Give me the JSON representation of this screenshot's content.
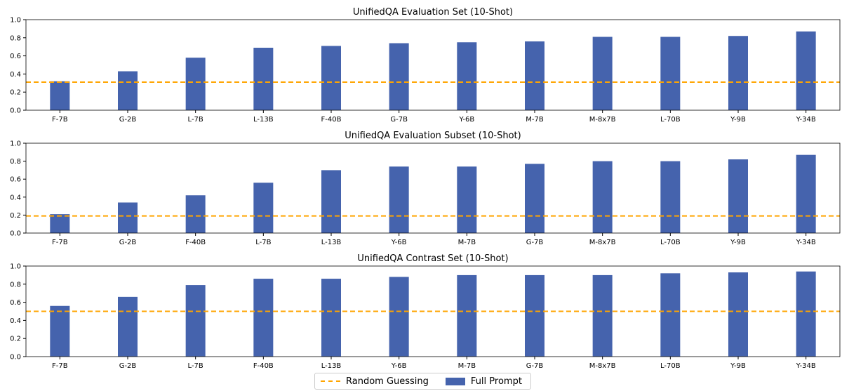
{
  "chart_data": [
    {
      "type": "bar",
      "title": "UnifiedQA Evaluation Set (10-Shot)",
      "categories": [
        "F-7B",
        "G-2B",
        "L-7B",
        "L-13B",
        "F-40B",
        "G-7B",
        "Y-6B",
        "M-7B",
        "M-8x7B",
        "L-70B",
        "Y-9B",
        "Y-34B"
      ],
      "series": [
        {
          "name": "Full Prompt",
          "values": [
            0.32,
            0.43,
            0.58,
            0.69,
            0.71,
            0.74,
            0.75,
            0.76,
            0.81,
            0.81,
            0.82,
            0.87
          ]
        }
      ],
      "reference_line": {
        "name": "Random Guessing",
        "value": 0.31
      },
      "ylim": [
        0,
        1.0
      ],
      "yticks": [
        "0.0",
        "0.2",
        "0.4",
        "0.6",
        "0.8",
        "1.0"
      ]
    },
    {
      "type": "bar",
      "title": "UnifiedQA Evaluation Subset (10-Shot)",
      "categories": [
        "F-7B",
        "G-2B",
        "F-40B",
        "L-7B",
        "L-13B",
        "Y-6B",
        "M-7B",
        "G-7B",
        "M-8x7B",
        "L-70B",
        "Y-9B",
        "Y-34B"
      ],
      "series": [
        {
          "name": "Full Prompt",
          "values": [
            0.21,
            0.34,
            0.42,
            0.56,
            0.7,
            0.74,
            0.74,
            0.77,
            0.8,
            0.8,
            0.82,
            0.87
          ]
        }
      ],
      "reference_line": {
        "name": "Random Guessing",
        "value": 0.19
      },
      "ylim": [
        0,
        1.0
      ],
      "yticks": [
        "0.0",
        "0.2",
        "0.4",
        "0.6",
        "0.8",
        "1.0"
      ]
    },
    {
      "type": "bar",
      "title": "UnifiedQA Contrast Set (10-Shot)",
      "categories": [
        "F-7B",
        "G-2B",
        "L-7B",
        "F-40B",
        "L-13B",
        "Y-6B",
        "M-7B",
        "G-7B",
        "M-8x7B",
        "L-70B",
        "Y-9B",
        "Y-34B"
      ],
      "series": [
        {
          "name": "Full Prompt",
          "values": [
            0.56,
            0.66,
            0.79,
            0.86,
            0.86,
            0.88,
            0.9,
            0.9,
            0.9,
            0.92,
            0.93,
            0.94
          ]
        }
      ],
      "reference_line": {
        "name": "Random Guessing",
        "value": 0.5
      },
      "ylim": [
        0,
        1.0
      ],
      "yticks": [
        "0.0",
        "0.2",
        "0.4",
        "0.6",
        "0.8",
        "1.0"
      ]
    }
  ],
  "legend": {
    "random_label": "Random Guessing",
    "full_label": "Full Prompt",
    "placement": "bottom-center"
  },
  "colors": {
    "bar": "#4563AD",
    "reference_line": "#FFA500"
  }
}
